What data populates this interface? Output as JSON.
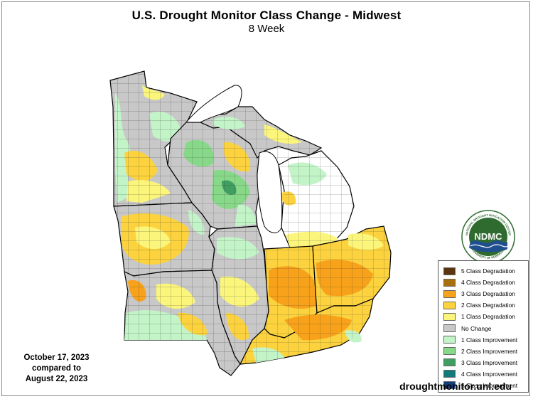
{
  "header": {
    "title": "U.S. Drought Monitor Class Change - Midwest",
    "subtitle": "8 Week"
  },
  "comparison": {
    "line1": "October 17, 2023",
    "line2": "compared to",
    "line3": "August 22, 2023"
  },
  "website": "droughtmonitor.unl.edu",
  "logo": {
    "acronym": "NDMC",
    "ring_text_top": "NATIONAL DROUGHT MITIGATION CENTER",
    "ring_text_bottom": "UNIVERSITY OF NEBRASKA"
  },
  "legend": {
    "items": [
      {
        "label": "5 Class Degradation",
        "color": "#5a3510"
      },
      {
        "label": "4 Class Degradation",
        "color": "#a8700d"
      },
      {
        "label": "3 Class Degradation",
        "color": "#f7a21a"
      },
      {
        "label": "2 Class Degradation",
        "color": "#fcd33e"
      },
      {
        "label": "1 Class Degradation",
        "color": "#fbf67b"
      },
      {
        "label": "No Change",
        "color": "#c8c8c8"
      },
      {
        "label": "1 Class Improvement",
        "color": "#c3f4c8"
      },
      {
        "label": "2 Class Improvement",
        "color": "#88d88a"
      },
      {
        "label": "3 Class Improvement",
        "color": "#3f9e60"
      },
      {
        "label": "4 Class Improvement",
        "color": "#137a7a"
      },
      {
        "label": "5 Class Improvement",
        "color": "#153f7c"
      }
    ]
  },
  "map": {
    "water_color": "#ffffff",
    "state_border_color": "#000000",
    "county_border_color": "#222222"
  }
}
